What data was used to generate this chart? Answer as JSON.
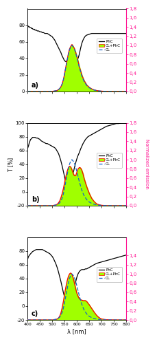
{
  "xlim": [
    400,
    800
  ],
  "xticks": [
    400,
    450,
    500,
    550,
    600,
    650,
    700,
    750,
    800
  ],
  "xlabel": "λ [nm]",
  "ylabel_left": "T [%]",
  "ylabel_right": "Normalized emission",
  "panels": [
    "a)",
    "b)",
    "c)"
  ],
  "panel_a": {
    "ylim_left": [
      0,
      100
    ],
    "ylim_right": [
      0.0,
      1.8
    ],
    "yticks_left": [
      0,
      20,
      40,
      60,
      80
    ],
    "yticks_right": [
      0.0,
      0.2,
      0.4,
      0.6,
      0.8,
      1.0,
      1.2,
      1.4,
      1.6,
      1.8
    ],
    "PhC_x": [
      400,
      402,
      404,
      406,
      408,
      410,
      412,
      414,
      416,
      418,
      420,
      422,
      424,
      426,
      428,
      430,
      435,
      440,
      445,
      450,
      455,
      460,
      465,
      470,
      475,
      480,
      485,
      490,
      495,
      500,
      505,
      510,
      515,
      520,
      525,
      530,
      535,
      540,
      545,
      550,
      555,
      560,
      565,
      570,
      575,
      580,
      585,
      590,
      595,
      600,
      605,
      610,
      615,
      620,
      625,
      630,
      635,
      640,
      650,
      660,
      670,
      680,
      690,
      700,
      710,
      720,
      730,
      740,
      750,
      760,
      770,
      780,
      790,
      800
    ],
    "PhC_y": [
      79,
      79,
      78,
      78,
      78,
      77,
      77,
      77,
      76,
      76,
      76,
      75,
      75,
      75,
      75,
      74,
      74,
      73,
      73,
      72,
      72,
      71,
      71,
      70,
      70,
      70,
      69,
      68,
      67,
      66,
      64,
      62,
      59,
      56,
      53,
      50,
      47,
      43,
      40,
      37,
      36,
      37,
      40,
      44,
      47,
      46,
      44,
      42,
      40,
      38,
      40,
      45,
      52,
      58,
      62,
      65,
      67,
      68,
      69,
      70,
      70,
      70,
      70,
      70,
      70,
      70,
      70,
      70,
      70,
      70,
      70,
      70,
      70,
      70
    ],
    "CL_x": [
      400,
      450,
      500,
      510,
      520,
      530,
      535,
      540,
      545,
      550,
      555,
      560,
      565,
      570,
      575,
      580,
      585,
      590,
      595,
      600,
      605,
      610,
      615,
      620,
      625,
      630,
      640,
      650,
      660,
      670,
      680,
      690,
      700,
      710,
      720,
      730,
      740,
      750,
      760,
      770,
      780,
      800
    ],
    "CL_y": [
      0,
      0,
      0,
      0.01,
      0.02,
      0.06,
      0.1,
      0.16,
      0.25,
      0.38,
      0.52,
      0.66,
      0.79,
      0.9,
      0.97,
      1.0,
      0.97,
      0.92,
      0.84,
      0.74,
      0.63,
      0.52,
      0.43,
      0.34,
      0.27,
      0.21,
      0.13,
      0.08,
      0.05,
      0.03,
      0.018,
      0.01,
      0.006,
      0.003,
      0.002,
      0.001,
      0.001,
      0,
      0,
      0,
      0,
      0
    ],
    "CLPhC_x": [
      400,
      450,
      500,
      510,
      520,
      530,
      535,
      540,
      545,
      550,
      555,
      560,
      565,
      570,
      575,
      580,
      585,
      590,
      595,
      600,
      605,
      610,
      615,
      620,
      625,
      630,
      640,
      650,
      660,
      670,
      680,
      690,
      700,
      710,
      720,
      730,
      740,
      750,
      760,
      770,
      780,
      800
    ],
    "CLPhC_y": [
      0,
      0,
      0,
      0.01,
      0.02,
      0.06,
      0.1,
      0.16,
      0.25,
      0.38,
      0.53,
      0.67,
      0.81,
      0.92,
      0.98,
      1.02,
      0.98,
      0.93,
      0.85,
      0.76,
      0.65,
      0.54,
      0.45,
      0.36,
      0.29,
      0.23,
      0.14,
      0.09,
      0.055,
      0.033,
      0.02,
      0.011,
      0.006,
      0.003,
      0.002,
      0.001,
      0.001,
      0,
      0,
      0,
      0,
      0
    ]
  },
  "panel_b": {
    "ylim_left": [
      -20,
      100
    ],
    "ylim_right": [
      0.0,
      1.8
    ],
    "yticks_left": [
      -20,
      0,
      20,
      40,
      60,
      80,
      100
    ],
    "yticks_right": [
      0.0,
      0.2,
      0.4,
      0.6,
      0.8,
      1.0,
      1.2,
      1.4,
      1.6,
      1.8
    ],
    "PhC_x": [
      400,
      402,
      404,
      406,
      408,
      410,
      412,
      416,
      420,
      425,
      430,
      435,
      440,
      445,
      450,
      455,
      460,
      465,
      470,
      475,
      480,
      485,
      490,
      495,
      500,
      505,
      510,
      515,
      520,
      525,
      530,
      535,
      540,
      545,
      550,
      555,
      560,
      565,
      570,
      575,
      580,
      585,
      590,
      595,
      600,
      605,
      610,
      615,
      620,
      625,
      630,
      635,
      640,
      645,
      650,
      655,
      660,
      665,
      670,
      675,
      680,
      685,
      690,
      695,
      700,
      710,
      720,
      730,
      740,
      750,
      760,
      770,
      780,
      790,
      800
    ],
    "PhC_y": [
      63,
      65,
      67,
      70,
      72,
      74,
      76,
      77,
      79,
      79,
      79,
      78,
      78,
      77,
      76,
      74,
      73,
      72,
      71,
      70,
      70,
      69,
      68,
      67,
      66,
      65,
      64,
      62,
      59,
      56,
      51,
      45,
      38,
      30,
      22,
      13,
      7,
      5,
      6,
      10,
      18,
      27,
      35,
      42,
      48,
      53,
      57,
      62,
      66,
      70,
      73,
      76,
      78,
      80,
      81,
      82,
      83,
      84,
      85,
      86,
      87,
      88,
      89,
      90,
      91,
      93,
      95,
      96,
      97,
      98,
      99,
      99,
      100,
      100,
      100
    ],
    "CL_x": [
      400,
      450,
      500,
      510,
      520,
      530,
      535,
      540,
      545,
      550,
      555,
      560,
      565,
      570,
      575,
      580,
      585,
      590,
      595,
      600,
      605,
      610,
      615,
      620,
      625,
      630,
      640,
      650,
      660,
      670,
      680,
      690,
      700,
      710,
      720,
      730,
      740,
      750,
      760,
      770,
      780,
      800
    ],
    "CL_y": [
      0,
      0,
      0,
      0.01,
      0.02,
      0.06,
      0.1,
      0.16,
      0.25,
      0.38,
      0.52,
      0.66,
      0.79,
      0.9,
      0.97,
      1.0,
      0.97,
      0.92,
      0.84,
      0.74,
      0.63,
      0.52,
      0.43,
      0.34,
      0.27,
      0.21,
      0.13,
      0.08,
      0.05,
      0.03,
      0.018,
      0.01,
      0.006,
      0.003,
      0.002,
      0.001,
      0.001,
      0,
      0,
      0,
      0,
      0
    ],
    "CLPhC_x": [
      400,
      450,
      500,
      510,
      520,
      525,
      530,
      535,
      540,
      545,
      550,
      555,
      560,
      565,
      570,
      575,
      580,
      585,
      590,
      595,
      600,
      605,
      610,
      615,
      620,
      625,
      630,
      640,
      650,
      660,
      670,
      680,
      690,
      700,
      720,
      750,
      780,
      800
    ],
    "CLPhC_y": [
      0,
      0,
      0,
      0.01,
      0.03,
      0.06,
      0.1,
      0.17,
      0.26,
      0.37,
      0.5,
      0.63,
      0.74,
      0.82,
      0.86,
      0.84,
      0.78,
      0.7,
      0.65,
      0.65,
      0.73,
      0.8,
      0.83,
      0.82,
      0.77,
      0.69,
      0.58,
      0.41,
      0.27,
      0.16,
      0.09,
      0.04,
      0.02,
      0.008,
      0.001,
      0,
      0,
      0
    ]
  },
  "panel_c": {
    "ylim_left": [
      -20,
      100
    ],
    "ylim_right": [
      0.0,
      1.8
    ],
    "yticks_left": [
      -20,
      0,
      20,
      40,
      60,
      80
    ],
    "yticks_right": [
      0.0,
      0.2,
      0.4,
      0.6,
      0.8,
      1.0,
      1.2,
      1.4
    ],
    "PhC_x": [
      400,
      402,
      404,
      406,
      408,
      410,
      415,
      420,
      425,
      430,
      435,
      440,
      445,
      450,
      455,
      460,
      465,
      470,
      475,
      480,
      485,
      490,
      495,
      500,
      505,
      510,
      515,
      520,
      525,
      530,
      535,
      540,
      545,
      550,
      555,
      560,
      565,
      570,
      575,
      580,
      585,
      590,
      595,
      600,
      605,
      610,
      615,
      620,
      625,
      630,
      635,
      640,
      645,
      650,
      660,
      670,
      680,
      690,
      700,
      710,
      720,
      730,
      740,
      750,
      760,
      770,
      780,
      790,
      800
    ],
    "PhC_y": [
      68,
      70,
      72,
      73,
      74,
      75,
      77,
      79,
      80,
      81,
      82,
      82,
      82,
      82,
      82,
      82,
      81,
      80,
      79,
      78,
      77,
      76,
      74,
      72,
      69,
      65,
      61,
      56,
      50,
      43,
      36,
      28,
      20,
      13,
      8,
      4,
      4,
      6,
      9,
      14,
      20,
      27,
      35,
      42,
      47,
      50,
      52,
      53,
      53,
      53,
      54,
      54,
      55,
      56,
      58,
      60,
      62,
      63,
      64,
      65,
      66,
      67,
      68,
      69,
      70,
      71,
      72,
      73,
      74
    ],
    "CL_x": [
      400,
      450,
      500,
      510,
      520,
      530,
      535,
      540,
      545,
      550,
      555,
      560,
      565,
      570,
      575,
      580,
      585,
      590,
      595,
      600,
      605,
      610,
      615,
      620,
      625,
      630,
      640,
      650,
      660,
      670,
      680,
      690,
      700,
      710,
      720,
      730,
      740,
      750,
      760,
      770,
      780,
      800
    ],
    "CL_y": [
      0,
      0,
      0,
      0.01,
      0.02,
      0.06,
      0.1,
      0.16,
      0.25,
      0.38,
      0.52,
      0.66,
      0.79,
      0.9,
      0.97,
      1.0,
      0.97,
      0.92,
      0.84,
      0.74,
      0.63,
      0.52,
      0.43,
      0.34,
      0.27,
      0.21,
      0.13,
      0.08,
      0.05,
      0.03,
      0.018,
      0.01,
      0.006,
      0.003,
      0.002,
      0.001,
      0.001,
      0,
      0,
      0,
      0,
      0
    ],
    "CLPhC_x": [
      400,
      450,
      500,
      510,
      515,
      520,
      525,
      530,
      535,
      540,
      545,
      550,
      555,
      560,
      565,
      570,
      575,
      580,
      585,
      590,
      595,
      600,
      605,
      610,
      615,
      620,
      625,
      630,
      635,
      640,
      650,
      660,
      670,
      680,
      690,
      700,
      720,
      750,
      780,
      800
    ],
    "CLPhC_y": [
      0,
      0,
      0,
      0.005,
      0.01,
      0.02,
      0.04,
      0.08,
      0.15,
      0.26,
      0.4,
      0.56,
      0.71,
      0.84,
      0.94,
      1.0,
      1.02,
      0.99,
      0.91,
      0.8,
      0.68,
      0.58,
      0.51,
      0.46,
      0.44,
      0.43,
      0.42,
      0.42,
      0.42,
      0.4,
      0.33,
      0.25,
      0.17,
      0.1,
      0.05,
      0.02,
      0.005,
      0.001,
      0,
      0
    ]
  },
  "colors": {
    "PhC": "#000000",
    "CL": "#1464c8",
    "CLPhC_line": "#ff0000",
    "CLPhC_fill": "#a0ff00",
    "right_axis": "#ff1493"
  }
}
